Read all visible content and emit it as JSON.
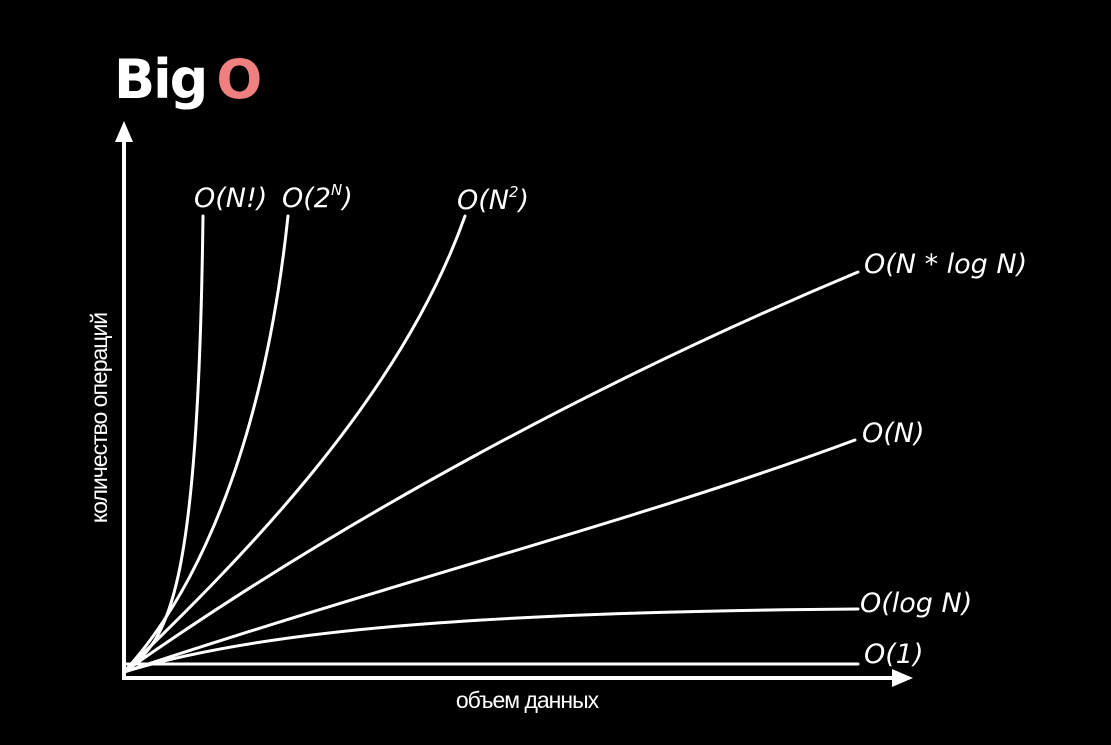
{
  "chart_data": {
    "type": "line",
    "title_main": "Big",
    "title_accent": "O",
    "title_accent_color": "#f08080",
    "xlabel": "объем данных",
    "ylabel": "количество операций",
    "line_color": "#ffffff",
    "series": [
      {
        "name": "O(N!)",
        "name_base": "O(N!)",
        "name_sup": ""
      },
      {
        "name": "O(2^N)",
        "name_base": "O(2",
        "name_sup": "N",
        "name_close": ")"
      },
      {
        "name": "O(N^2)",
        "name_base": "O(N",
        "name_sup": "2",
        "name_close": ")"
      },
      {
        "name": "O(N * log N)",
        "name_base": "O(N * log N)",
        "name_sup": ""
      },
      {
        "name": "O(N)",
        "name_base": "O(N)",
        "name_sup": ""
      },
      {
        "name": "O(log N)",
        "name_base": "O(log N)",
        "name_sup": ""
      },
      {
        "name": "O(1)",
        "name_base": "O(1)",
        "name_sup": ""
      }
    ]
  }
}
